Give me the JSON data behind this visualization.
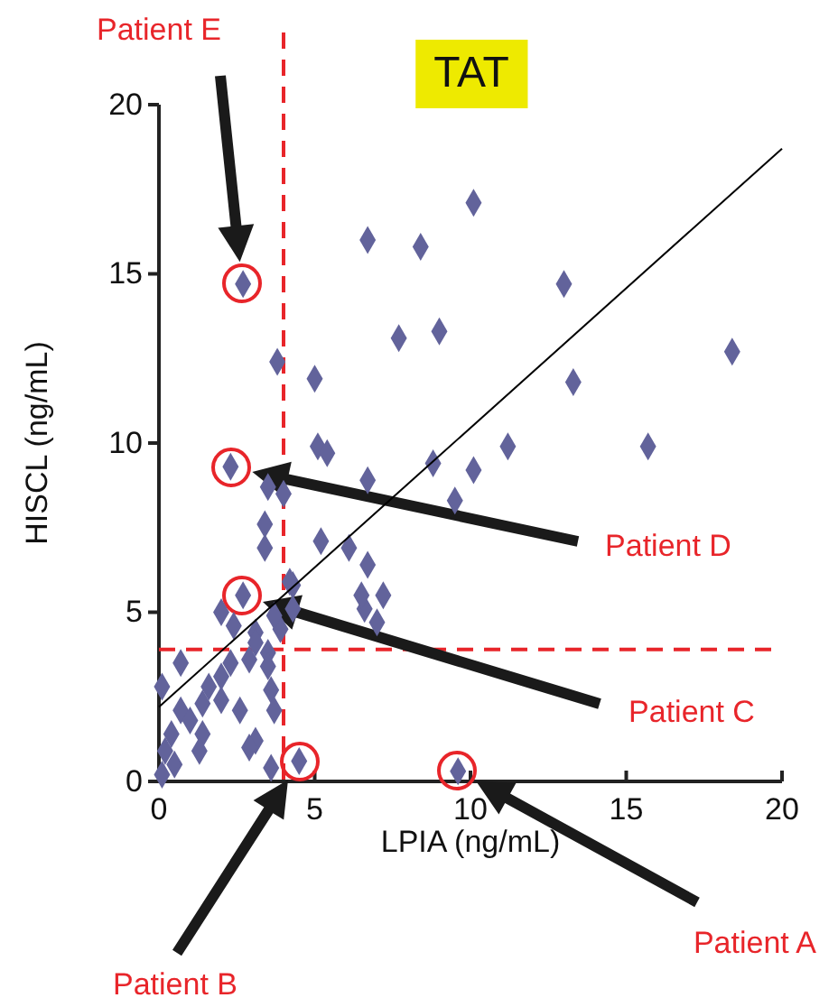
{
  "chart_data": {
    "type": "scatter",
    "title": "TAT",
    "xlabel": "LPIA (ng/mL)",
    "ylabel": "HISCL (ng/mL)",
    "xlim": [
      0,
      20
    ],
    "ylim": [
      0,
      20
    ],
    "xticks": [
      0,
      5,
      10,
      15,
      20
    ],
    "yticks": [
      0,
      5,
      10,
      15,
      20
    ],
    "marker": "diamond",
    "grid": false,
    "series": [
      {
        "color": "#62639b",
        "x": [
          10.1,
          6.7,
          8.4,
          2.7,
          13.0,
          7.7,
          9.0,
          18.4,
          3.8,
          5.0,
          13.3,
          5.1,
          5.4,
          11.2,
          15.7,
          8.8,
          10.1,
          6.7,
          2.3,
          9.5,
          6.1,
          6.6,
          7.0,
          4.0,
          3.4,
          3.4,
          2.7,
          2.0,
          2.4,
          4.3,
          4.3,
          3.9,
          3.7,
          3.1,
          3.1,
          2.9,
          3.5,
          3.5,
          0.7,
          0.1,
          2.3,
          2.0,
          1.6,
          2.0,
          1.4,
          2.6,
          3.6,
          3.7,
          3.1,
          2.9,
          1.4,
          1.3,
          0.4,
          0.2,
          0.5,
          0.1,
          0.7,
          1.0,
          3.6,
          4.5,
          4.2,
          9.6,
          5.2,
          6.7,
          7.2,
          6.5,
          3.5
        ],
        "values": [
          17.1,
          16.0,
          15.8,
          14.7,
          14.7,
          13.1,
          13.3,
          12.7,
          12.4,
          11.9,
          11.8,
          9.9,
          9.7,
          9.9,
          9.9,
          9.4,
          9.2,
          8.9,
          9.3,
          8.3,
          6.9,
          5.1,
          4.7,
          8.5,
          7.6,
          6.9,
          5.5,
          5.0,
          4.6,
          5.8,
          5.1,
          4.5,
          4.9,
          4.4,
          4.1,
          3.6,
          3.8,
          3.4,
          3.5,
          2.8,
          3.5,
          3.1,
          2.8,
          2.4,
          2.3,
          2.1,
          2.7,
          2.1,
          1.2,
          1.0,
          1.4,
          0.9,
          1.4,
          0.9,
          0.5,
          0.2,
          2.1,
          1.8,
          0.4,
          0.6,
          5.9,
          0.3,
          7.1,
          6.4,
          5.5,
          5.5,
          8.7
        ]
      },
      {
        "type": "line",
        "marker": "none",
        "color": "#000000",
        "x": [
          0,
          20
        ],
        "values": [
          2.2,
          18.7
        ]
      }
    ],
    "ref_lines": [
      {
        "axis": "x",
        "value": 4,
        "color": "#e8252a",
        "line_style": "dashed"
      },
      {
        "axis": "y",
        "value": 3.9,
        "color": "#e8252a",
        "line_style": "dashed"
      }
    ],
    "annotations": [
      "Patient E",
      "Patient D",
      "Patient C",
      "Patient B",
      "Patient A"
    ]
  }
}
